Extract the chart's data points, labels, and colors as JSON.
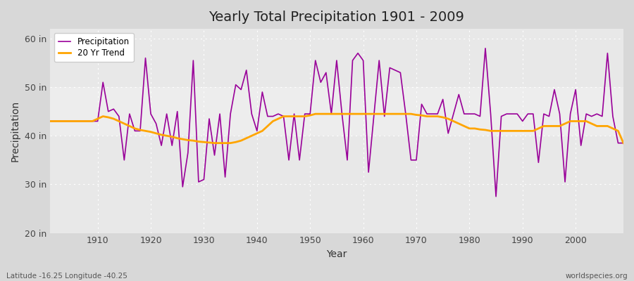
{
  "title": "Yearly Total Precipitation 1901 - 2009",
  "xlabel": "Year",
  "ylabel": "Precipitation",
  "ylim": [
    20,
    62
  ],
  "xlim": [
    1901,
    2009
  ],
  "yticks": [
    20,
    30,
    40,
    50,
    60
  ],
  "ytick_labels": [
    "20 in",
    "30 in",
    "40 in",
    "50 in",
    "60 in"
  ],
  "xticks": [
    1910,
    1920,
    1930,
    1940,
    1950,
    1960,
    1970,
    1980,
    1990,
    2000
  ],
  "bg_outer": "#d8d8d8",
  "bg_plot": "#e8e8e8",
  "precip_color": "#990099",
  "trend_color": "#FFA500",
  "legend_labels": [
    "Precipitation",
    "20 Yr Trend"
  ],
  "footer_left": "Latitude -16.25 Longitude -40.25",
  "footer_right": "worldspecies.org",
  "years": [
    1901,
    1902,
    1903,
    1904,
    1905,
    1906,
    1907,
    1908,
    1909,
    1910,
    1911,
    1912,
    1913,
    1914,
    1915,
    1916,
    1917,
    1918,
    1919,
    1920,
    1921,
    1922,
    1923,
    1924,
    1925,
    1926,
    1927,
    1928,
    1929,
    1930,
    1931,
    1932,
    1933,
    1934,
    1935,
    1936,
    1937,
    1938,
    1939,
    1940,
    1941,
    1942,
    1943,
    1944,
    1945,
    1946,
    1947,
    1948,
    1949,
    1950,
    1951,
    1952,
    1953,
    1954,
    1955,
    1956,
    1957,
    1958,
    1959,
    1960,
    1961,
    1962,
    1963,
    1964,
    1965,
    1966,
    1967,
    1968,
    1969,
    1970,
    1971,
    1972,
    1973,
    1974,
    1975,
    1976,
    1977,
    1978,
    1979,
    1980,
    1981,
    1982,
    1983,
    1984,
    1985,
    1986,
    1987,
    1988,
    1989,
    1990,
    1991,
    1992,
    1993,
    1994,
    1995,
    1996,
    1997,
    1998,
    1999,
    2000,
    2001,
    2002,
    2003,
    2004,
    2005,
    2006,
    2007,
    2008,
    2009
  ],
  "precip": [
    43.0,
    43.0,
    43.0,
    43.0,
    43.0,
    43.0,
    43.0,
    43.0,
    43.0,
    43.0,
    51.0,
    45.0,
    45.5,
    44.0,
    35.0,
    44.5,
    41.0,
    41.0,
    56.0,
    44.5,
    42.5,
    38.0,
    44.5,
    38.0,
    45.0,
    29.5,
    36.5,
    55.5,
    30.5,
    31.0,
    43.5,
    36.0,
    44.5,
    31.5,
    44.5,
    50.5,
    49.5,
    53.5,
    44.5,
    41.0,
    49.0,
    44.0,
    44.0,
    44.5,
    44.0,
    35.0,
    44.5,
    35.0,
    44.5,
    44.5,
    55.5,
    51.0,
    53.0,
    44.5,
    55.5,
    44.5,
    35.0,
    55.5,
    57.0,
    55.5,
    32.5,
    44.0,
    55.5,
    44.0,
    54.0,
    53.5,
    53.0,
    44.5,
    35.0,
    35.0,
    46.5,
    44.5,
    44.5,
    44.5,
    47.5,
    40.5,
    44.5,
    48.5,
    44.5,
    44.5,
    44.5,
    44.0,
    58.0,
    44.5,
    27.5,
    44.0,
    44.5,
    44.5,
    44.5,
    43.0,
    44.5,
    44.5,
    34.5,
    44.5,
    44.0,
    49.5,
    44.5,
    30.5,
    44.5,
    49.5,
    38.0,
    44.5,
    44.0,
    44.5,
    44.0,
    57.0,
    44.0,
    38.5,
    38.5
  ],
  "trend": [
    43.0,
    43.0,
    43.0,
    43.0,
    43.0,
    43.0,
    43.0,
    43.0,
    43.0,
    43.5,
    44.0,
    43.8,
    43.5,
    43.0,
    42.5,
    42.0,
    41.5,
    41.2,
    41.0,
    40.8,
    40.5,
    40.2,
    40.0,
    39.8,
    39.5,
    39.3,
    39.1,
    39.0,
    38.8,
    38.7,
    38.6,
    38.5,
    38.5,
    38.5,
    38.5,
    38.7,
    39.0,
    39.5,
    40.0,
    40.5,
    41.0,
    42.0,
    43.0,
    43.5,
    44.0,
    44.0,
    44.0,
    44.0,
    44.0,
    44.2,
    44.5,
    44.5,
    44.5,
    44.5,
    44.5,
    44.5,
    44.5,
    44.5,
    44.5,
    44.5,
    44.5,
    44.5,
    44.5,
    44.5,
    44.5,
    44.5,
    44.5,
    44.5,
    44.5,
    44.3,
    44.2,
    44.0,
    44.0,
    44.0,
    43.8,
    43.5,
    43.0,
    42.5,
    42.0,
    41.5,
    41.5,
    41.3,
    41.2,
    41.0,
    41.0,
    41.0,
    41.0,
    41.0,
    41.0,
    41.0,
    41.0,
    41.0,
    41.5,
    42.0,
    42.0,
    42.0,
    42.0,
    42.5,
    43.0,
    43.0,
    43.0,
    43.0,
    42.5,
    42.0,
    42.0,
    42.0,
    41.5,
    41.0,
    38.5
  ]
}
